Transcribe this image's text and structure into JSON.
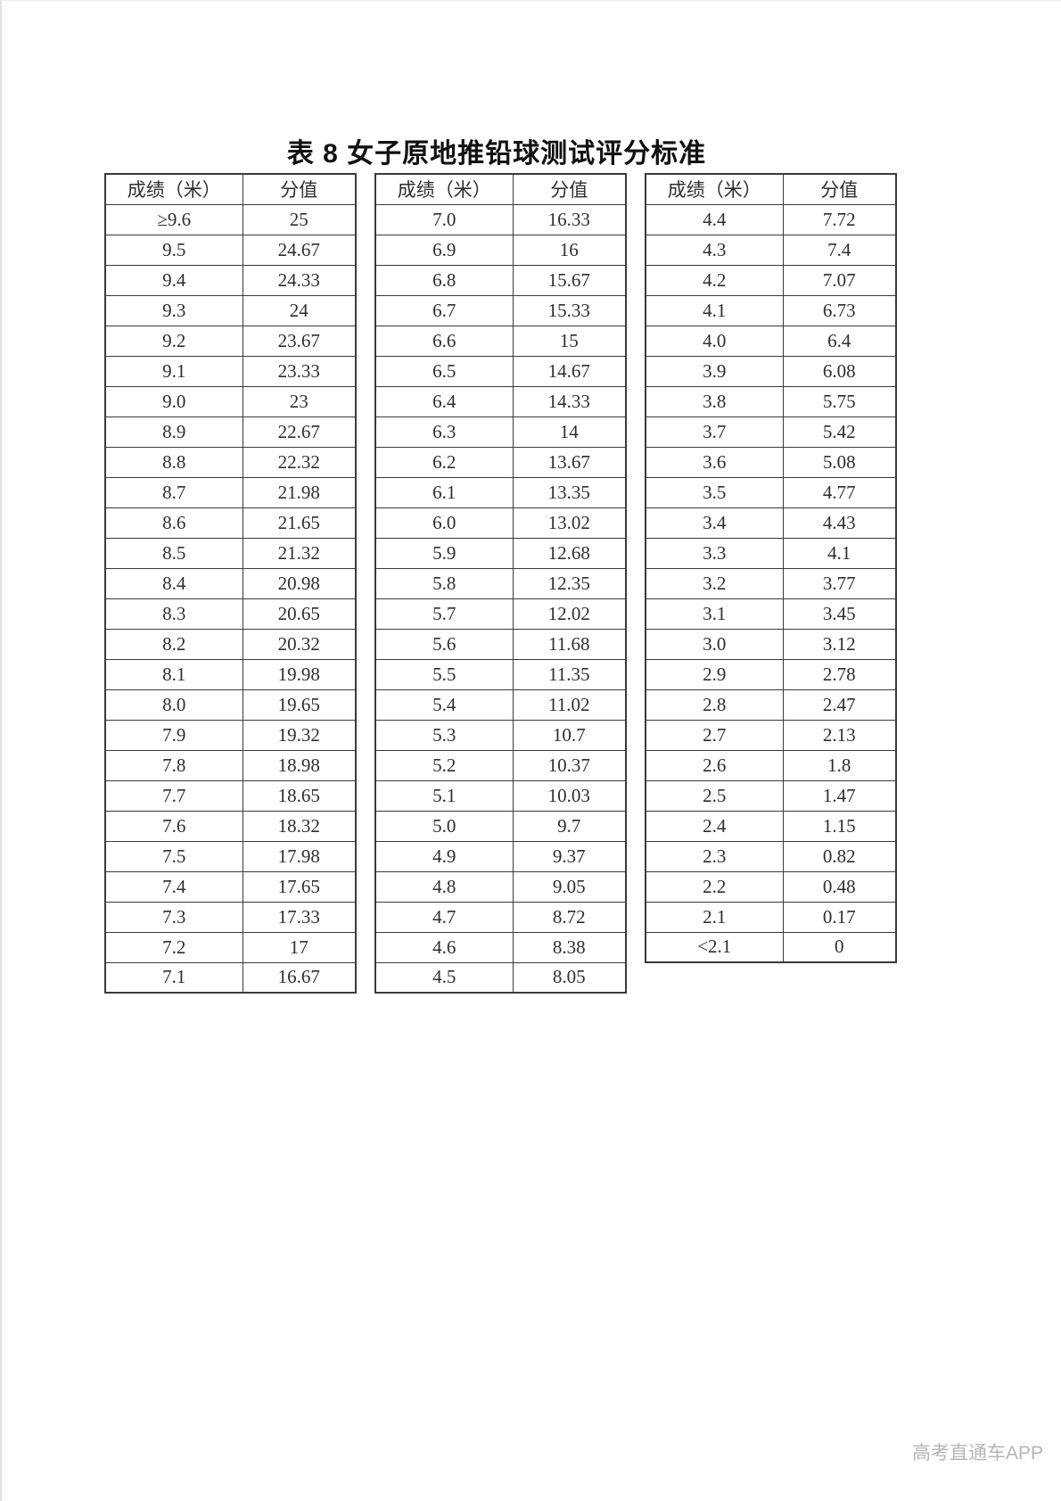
{
  "page": {
    "title": "表 8  女子原地推铅球测试评分标准",
    "watermark": "高考直通车APP"
  },
  "headers": {
    "score": "成绩（米）",
    "points": "分值"
  },
  "colors": {
    "border": "#3a3a3a",
    "text": "#2e2e2e",
    "title": "#111111",
    "watermark": "#b5b5b5",
    "background": "#ffffff"
  },
  "tables": [
    {
      "rows": [
        [
          "≥9.6",
          "25"
        ],
        [
          "9.5",
          "24.67"
        ],
        [
          "9.4",
          "24.33"
        ],
        [
          "9.3",
          "24"
        ],
        [
          "9.2",
          "23.67"
        ],
        [
          "9.1",
          "23.33"
        ],
        [
          "9.0",
          "23"
        ],
        [
          "8.9",
          "22.67"
        ],
        [
          "8.8",
          "22.32"
        ],
        [
          "8.7",
          "21.98"
        ],
        [
          "8.6",
          "21.65"
        ],
        [
          "8.5",
          "21.32"
        ],
        [
          "8.4",
          "20.98"
        ],
        [
          "8.3",
          "20.65"
        ],
        [
          "8.2",
          "20.32"
        ],
        [
          "8.1",
          "19.98"
        ],
        [
          "8.0",
          "19.65"
        ],
        [
          "7.9",
          "19.32"
        ],
        [
          "7.8",
          "18.98"
        ],
        [
          "7.7",
          "18.65"
        ],
        [
          "7.6",
          "18.32"
        ],
        [
          "7.5",
          "17.98"
        ],
        [
          "7.4",
          "17.65"
        ],
        [
          "7.3",
          "17.33"
        ],
        [
          "7.2",
          "17"
        ],
        [
          "7.1",
          "16.67"
        ]
      ]
    },
    {
      "rows": [
        [
          "7.0",
          "16.33"
        ],
        [
          "6.9",
          "16"
        ],
        [
          "6.8",
          "15.67"
        ],
        [
          "6.7",
          "15.33"
        ],
        [
          "6.6",
          "15"
        ],
        [
          "6.5",
          "14.67"
        ],
        [
          "6.4",
          "14.33"
        ],
        [
          "6.3",
          "14"
        ],
        [
          "6.2",
          "13.67"
        ],
        [
          "6.1",
          "13.35"
        ],
        [
          "6.0",
          "13.02"
        ],
        [
          "5.9",
          "12.68"
        ],
        [
          "5.8",
          "12.35"
        ],
        [
          "5.7",
          "12.02"
        ],
        [
          "5.6",
          "11.68"
        ],
        [
          "5.5",
          "11.35"
        ],
        [
          "5.4",
          "11.02"
        ],
        [
          "5.3",
          "10.7"
        ],
        [
          "5.2",
          "10.37"
        ],
        [
          "5.1",
          "10.03"
        ],
        [
          "5.0",
          "9.7"
        ],
        [
          "4.9",
          "9.37"
        ],
        [
          "4.8",
          "9.05"
        ],
        [
          "4.7",
          "8.72"
        ],
        [
          "4.6",
          "8.38"
        ],
        [
          "4.5",
          "8.05"
        ]
      ]
    },
    {
      "rows": [
        [
          "4.4",
          "7.72"
        ],
        [
          "4.3",
          "7.4"
        ],
        [
          "4.2",
          "7.07"
        ],
        [
          "4.1",
          "6.73"
        ],
        [
          "4.0",
          "6.4"
        ],
        [
          "3.9",
          "6.08"
        ],
        [
          "3.8",
          "5.75"
        ],
        [
          "3.7",
          "5.42"
        ],
        [
          "3.6",
          "5.08"
        ],
        [
          "3.5",
          "4.77"
        ],
        [
          "3.4",
          "4.43"
        ],
        [
          "3.3",
          "4.1"
        ],
        [
          "3.2",
          "3.77"
        ],
        [
          "3.1",
          "3.45"
        ],
        [
          "3.0",
          "3.12"
        ],
        [
          "2.9",
          "2.78"
        ],
        [
          "2.8",
          "2.47"
        ],
        [
          "2.7",
          "2.13"
        ],
        [
          "2.6",
          "1.8"
        ],
        [
          "2.5",
          "1.47"
        ],
        [
          "2.4",
          "1.15"
        ],
        [
          "2.3",
          "0.82"
        ],
        [
          "2.2",
          "0.48"
        ],
        [
          "2.1",
          "0.17"
        ],
        [
          "<2.1",
          "0"
        ]
      ]
    }
  ]
}
